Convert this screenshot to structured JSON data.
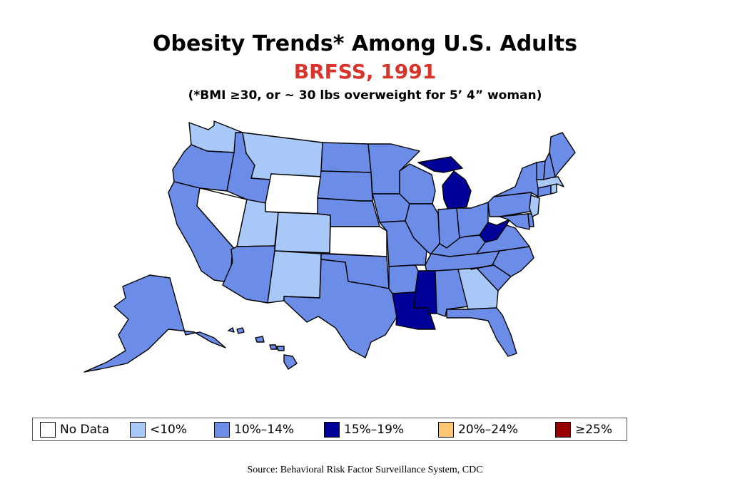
{
  "title": "Obesity Trends* Among U.S. Adults",
  "subtitle": "BRFSS, 1991",
  "note": "(*BMI ≥30, or ~ 30 lbs overweight for 5’ 4” woman)",
  "colors": {
    "no_data": "#ffffff",
    "lt10": "#a8c8f8",
    "p10_14": "#6b8de8",
    "p15_19": "#000099",
    "p20_24": "#ffc674",
    "ge25": "#990000"
  },
  "legend": [
    {
      "label": "No Data",
      "color": "#ffffff"
    },
    {
      "label": "<10%",
      "color": "#a8c8f8"
    },
    {
      "label": "10%–14%",
      "color": "#6b8de8"
    },
    {
      "label": "15%–19%",
      "color": "#000099"
    },
    {
      "label": "20%–24%",
      "color": "#ffc674"
    },
    {
      "label": "≥25%",
      "color": "#990000"
    }
  ],
  "states": {
    "WA": "lt10",
    "OR": "p10_14",
    "CA": "p10_14",
    "NV": "no_data",
    "ID": "p10_14",
    "MT": "lt10",
    "WY": "no_data",
    "UT": "lt10",
    "CO": "lt10",
    "AZ": "p10_14",
    "NM": "lt10",
    "ND": "p10_14",
    "SD": "p10_14",
    "NE": "p10_14",
    "KS": "no_data",
    "OK": "p10_14",
    "TX": "p10_14",
    "MN": "p10_14",
    "IA": "p10_14",
    "MO": "p10_14",
    "AR": "p10_14",
    "LA": "p15_19",
    "WI": "p10_14",
    "IL": "p10_14",
    "MI": "p15_19",
    "IN": "p10_14",
    "OH": "p10_14",
    "KY": "p10_14",
    "TN": "p10_14",
    "MS": "p15_19",
    "AL": "p10_14",
    "GA": "lt10",
    "FL": "p10_14",
    "SC": "p10_14",
    "NC": "p10_14",
    "VA": "p10_14",
    "WV": "p15_19",
    "PA": "p10_14",
    "NY": "p10_14",
    "ME": "p10_14",
    "VT": "p10_14",
    "NH": "p10_14",
    "MA": "lt10",
    "CT": "p10_14",
    "RI": "lt10",
    "NJ": "lt10",
    "DE": "p10_14",
    "MD": "p10_14",
    "AK": "p10_14",
    "HI": "p10_14"
  },
  "source": "Source: Behavioral Risk Factor Surveillance System, CDC"
}
